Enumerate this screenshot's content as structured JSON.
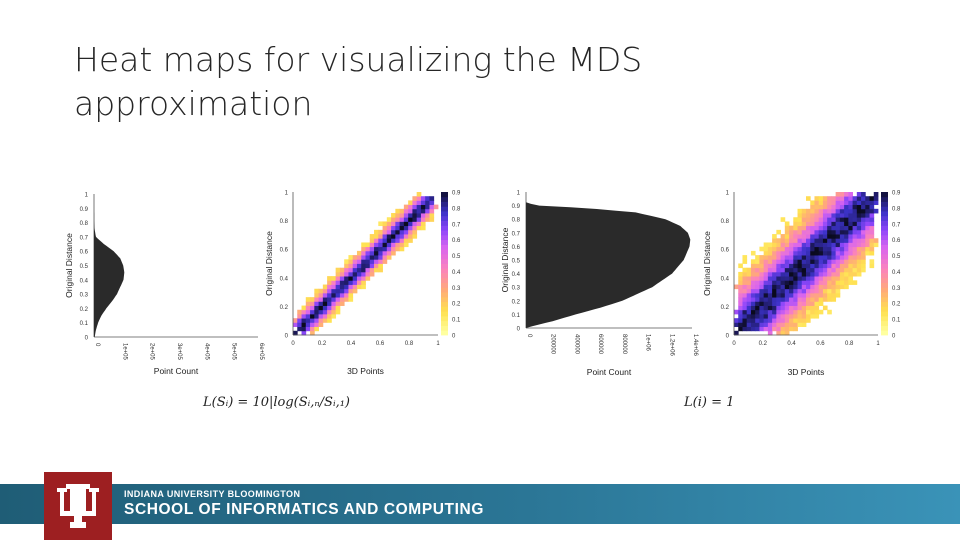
{
  "title": "Heat maps for visualizing the MDS approximation",
  "colors": {
    "accent": "#9d1f21",
    "footer": "#2b7696",
    "histogram": "#2a2a2a"
  },
  "chart_data": [
    {
      "type": "bar",
      "title": "",
      "xlabel": "Point Count",
      "ylabel": "Original Distance",
      "orientation": "horizontal",
      "xticks": [
        "0",
        "1e+05",
        "2e+05",
        "3e+05",
        "4e+05",
        "5e+05",
        "6e+05"
      ],
      "yticks": [
        "0",
        "0.1",
        "0.2",
        "0.3",
        "0.4",
        "0.5",
        "0.6",
        "0.7",
        "0.8",
        "0.9",
        "1"
      ],
      "xlim": [
        0,
        600000
      ],
      "ylim": [
        0,
        1
      ],
      "profile": [
        [
          0.0,
          0.004
        ],
        [
          0.05,
          0.012
        ],
        [
          0.1,
          0.025
        ],
        [
          0.15,
          0.045
        ],
        [
          0.2,
          0.075
        ],
        [
          0.25,
          0.11
        ],
        [
          0.3,
          0.14
        ],
        [
          0.35,
          0.16
        ],
        [
          0.4,
          0.18
        ],
        [
          0.45,
          0.185
        ],
        [
          0.5,
          0.178
        ],
        [
          0.55,
          0.16
        ],
        [
          0.6,
          0.12
        ],
        [
          0.65,
          0.06
        ],
        [
          0.7,
          0.012
        ],
        [
          0.75,
          0.004
        ],
        [
          0.8,
          0.001
        ],
        [
          0.9,
          0.0
        ],
        [
          1.0,
          0.0
        ]
      ]
    },
    {
      "type": "heatmap",
      "title": "",
      "xlabel": "3D Points",
      "ylabel": "Original Distance",
      "xticks": [
        "0",
        "0.2",
        "0.4",
        "0.6",
        "0.8",
        "1"
      ],
      "yticks": [
        "0",
        "0.2",
        "0.4",
        "0.6",
        "0.8",
        "1"
      ],
      "colorbar_ticks": [
        "0",
        "0.1",
        "0.2",
        "0.3",
        "0.4",
        "0.5",
        "0.6",
        "0.7",
        "0.8",
        "0.9"
      ],
      "xlim": [
        0,
        1
      ],
      "ylim": [
        0,
        1
      ],
      "spread": 0.07
    },
    {
      "type": "bar",
      "title": "",
      "xlabel": "Point Count",
      "ylabel": "Original Distance",
      "orientation": "horizontal",
      "xticks": [
        "0",
        "200000",
        "400000",
        "600000",
        "800000",
        "1e+06",
        "1.2e+06",
        "1.4e+06"
      ],
      "yticks": [
        "0",
        "0.1",
        "0.2",
        "0.3",
        "0.4",
        "0.5",
        "0.6",
        "0.7",
        "0.8",
        "0.9",
        "1"
      ],
      "xlim": [
        0,
        1400000
      ],
      "ylim": [
        0,
        1
      ],
      "profile": [
        [
          0.0,
          0.0
        ],
        [
          0.02,
          0.06
        ],
        [
          0.05,
          0.16
        ],
        [
          0.1,
          0.3
        ],
        [
          0.15,
          0.45
        ],
        [
          0.2,
          0.58
        ],
        [
          0.3,
          0.76
        ],
        [
          0.4,
          0.88
        ],
        [
          0.5,
          0.95
        ],
        [
          0.6,
          0.985
        ],
        [
          0.65,
          0.99
        ],
        [
          0.7,
          0.975
        ],
        [
          0.75,
          0.93
        ],
        [
          0.8,
          0.84
        ],
        [
          0.85,
          0.66
        ],
        [
          0.88,
          0.38
        ],
        [
          0.9,
          0.08
        ],
        [
          0.92,
          0.0
        ],
        [
          1.0,
          0.0
        ]
      ]
    },
    {
      "type": "heatmap",
      "title": "",
      "xlabel": "3D Points",
      "ylabel": "Original Distance",
      "xticks": [
        "0",
        "0.2",
        "0.4",
        "0.6",
        "0.8",
        "1"
      ],
      "yticks": [
        "0",
        "0.2",
        "0.4",
        "0.6",
        "0.8",
        "1"
      ],
      "colorbar_ticks": [
        "0",
        "0.1",
        "0.2",
        "0.3",
        "0.4",
        "0.5",
        "0.6",
        "0.7",
        "0.8",
        "0.9"
      ],
      "xlim": [
        0,
        1
      ],
      "ylim": [
        0,
        1
      ],
      "spread": 0.2
    }
  ],
  "formulas": {
    "left": "L(Sᵢ) = 10|log(Sᵢ,ₙ/Sᵢ,₁)",
    "right": "L(i) = 1"
  },
  "footer": {
    "line1": "INDIANA UNIVERSITY BLOOMINGTON",
    "line2": "SCHOOL OF INFORMATICS AND COMPUTING"
  }
}
